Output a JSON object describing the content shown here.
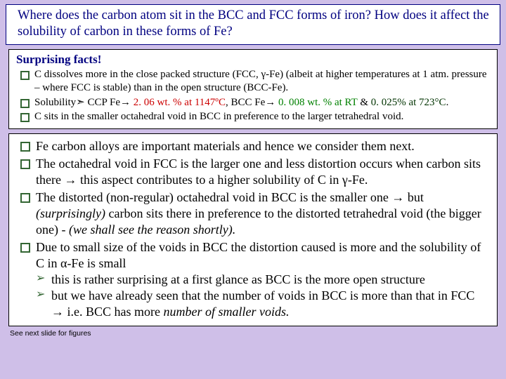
{
  "title": "Where does the carbon atom sit in the BCC and FCC forms of iron? How does  it affect the solubility of carbon in these forms of Fe?",
  "facts": {
    "heading": "Surprising facts!",
    "items": {
      "i1": "C dissolves more in the close packed structure (FCC, γ-Fe) (albeit at higher temperatures at 1 atm. pressure – where FCC is stable) than in the open structure (BCC-Fe).",
      "i2_pre": "Solubility➣  CCP Fe→ ",
      "i2_red1": "2. 06 wt. % at 1147ºC",
      "i2_mid": ", BCC Fe→ ",
      "i2_grn": "0. 008 wt. % at RT",
      "i2_amp": " & ",
      "i2_dgrn": "0. 025% at 723°C",
      "i2_end": ".",
      "i3": "C sits in the smaller octahedral void in BCC in preference to the larger tetrahedral void."
    }
  },
  "body": {
    "b1": "Fe carbon alloys are important materials and hence we consider them next.",
    "b2": "The octahedral void in FCC is the larger one and less distortion occurs when carbon sits there → this aspect contributes to a higher solubility of C in γ-Fe.",
    "b3_pre": "The distorted (non-regular) octahedral void in BCC is the smaller one → but ",
    "b3_it1": "(surprisingly)",
    "b3_mid": " carbon sits there in preference to the distorted tetrahedral void (the bigger one) - ",
    "b3_it2": "(we shall see the reason shortly).",
    "b4": "Due to small size of the voids in BCC the distortion caused is more and the solubility of C in α-Fe is small",
    "b4_s1": "this is rather surprising at a first glance as BCC is the more open structure",
    "b4_s2_pre": "but we have already seen that the number of voids in BCC is more than that in FCC → i.e. BCC has more ",
    "b4_s2_it": "number of smaller voids."
  },
  "footnote": "See next slide for figures"
}
